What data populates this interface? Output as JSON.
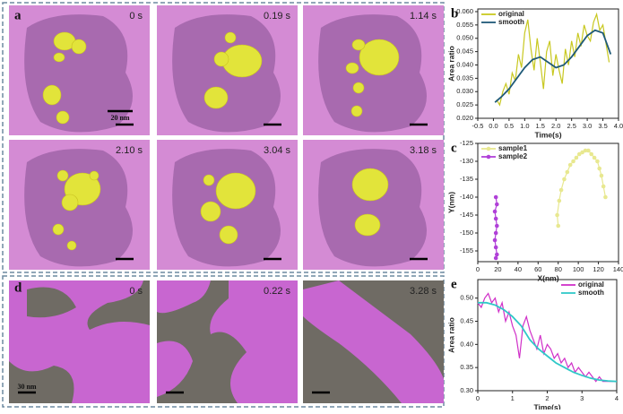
{
  "micrographs": {
    "label_a": "a",
    "times_a": [
      "0 s",
      "0.19 s",
      "1.14 s",
      "2.10 s",
      "3.04 s",
      "3.18 s"
    ],
    "scale_a": "20 nm",
    "label_d": "d",
    "times_d": [
      "0 s",
      "0.22 s",
      "3.28 s"
    ],
    "scale_d": "30 nm"
  },
  "chart_data": [
    {
      "type": "line",
      "panel_label": "b",
      "x_label": "Time(s)",
      "y_label": "Area ratio",
      "xlim": [
        -0.5,
        4.0
      ],
      "xticks": [
        {
          "value": -0.5,
          "label": "-0.5"
        },
        {
          "value": 0,
          "label": "0.0"
        },
        0.5,
        {
          "value": 1,
          "label": "1.0"
        },
        1.5,
        {
          "value": 2,
          "label": "2.0"
        },
        2.5,
        {
          "value": 3,
          "label": "3.0"
        },
        3.5,
        {
          "value": 4,
          "label": "4.0"
        }
      ],
      "ylim": [
        0.02,
        0.061
      ],
      "yticks": [
        {
          "value": 0.02,
          "label": "0.020"
        },
        0.025,
        {
          "value": 0.03,
          "label": "0.030"
        },
        0.035,
        {
          "value": 0.04,
          "label": "0.040"
        },
        0.045,
        {
          "value": 0.05,
          "label": "0.050"
        },
        0.055,
        {
          "value": 0.06,
          "label": "0.060"
        }
      ],
      "legend": "upper-left",
      "markers": false,
      "series": [
        {
          "name": "original",
          "color": "#c8c820",
          "width": 1.2,
          "x": [
            0.1,
            0.2,
            0.3,
            0.4,
            0.5,
            0.6,
            0.7,
            0.8,
            0.9,
            1.0,
            1.1,
            1.2,
            1.3,
            1.4,
            1.5,
            1.6,
            1.7,
            1.8,
            1.9,
            2.0,
            2.1,
            2.2,
            2.3,
            2.4,
            2.5,
            2.6,
            2.7,
            2.8,
            2.9,
            3.0,
            3.1,
            3.2,
            3.3,
            3.4,
            3.5,
            3.6,
            3.7
          ],
          "values": [
            0.027,
            0.025,
            0.03,
            0.033,
            0.029,
            0.037,
            0.034,
            0.044,
            0.039,
            0.052,
            0.057,
            0.046,
            0.038,
            0.05,
            0.041,
            0.031,
            0.045,
            0.049,
            0.036,
            0.044,
            0.038,
            0.033,
            0.046,
            0.04,
            0.049,
            0.043,
            0.052,
            0.047,
            0.055,
            0.051,
            0.049,
            0.056,
            0.059,
            0.053,
            0.055,
            0.048,
            0.041
          ]
        },
        {
          "name": "smooth",
          "color": "#1f5a78",
          "width": 1.8,
          "x": [
            0.05,
            0.25,
            0.5,
            0.75,
            1.0,
            1.25,
            1.5,
            1.75,
            2.0,
            2.25,
            2.5,
            2.75,
            3.0,
            3.25,
            3.5,
            3.75
          ],
          "values": [
            0.026,
            0.028,
            0.031,
            0.035,
            0.039,
            0.042,
            0.043,
            0.041,
            0.039,
            0.04,
            0.043,
            0.047,
            0.051,
            0.053,
            0.052,
            0.044
          ]
        }
      ]
    },
    {
      "type": "line",
      "panel_label": "c",
      "x_label": "X(nm)",
      "y_label": "Y(nm)",
      "xlim": [
        0,
        140
      ],
      "xticks": [
        0,
        20,
        40,
        60,
        80,
        100,
        120,
        140
      ],
      "ylim": [
        -158,
        -125
      ],
      "yticks": [
        -155,
        -150,
        -145,
        -140,
        -135,
        -130,
        -125
      ],
      "legend": "upper-left",
      "markers": true,
      "series": [
        {
          "name": "sample1",
          "color": "#e8e890",
          "width": 1.2,
          "x": [
            80,
            79,
            81,
            83,
            86,
            89,
            92,
            95,
            98,
            101,
            104,
            107,
            110,
            113,
            116,
            119,
            121,
            123,
            125,
            127
          ],
          "values": [
            -148,
            -145,
            -141,
            -138,
            -135,
            -133,
            -131,
            -130,
            -129,
            -128,
            -127.5,
            -127,
            -127,
            -128,
            -129,
            -130,
            -132,
            -134,
            -137,
            -140
          ]
        },
        {
          "name": "sample2",
          "color": "#b040d8",
          "width": 1.2,
          "x": [
            18,
            19,
            17,
            18,
            19,
            18,
            17,
            18,
            19,
            18
          ],
          "values": [
            -140,
            -142,
            -144,
            -146,
            -148,
            -150,
            -152,
            -154,
            -156,
            -157
          ]
        }
      ]
    },
    {
      "type": "line",
      "panel_label": "e",
      "x_label": "Time(s)",
      "y_label": "Area ratio",
      "xlim": [
        0,
        4
      ],
      "xticks": [
        0,
        1,
        2,
        3,
        4
      ],
      "ylim": [
        0.3,
        0.54
      ],
      "yticks": [
        {
          "value": 0.3,
          "label": "0.30"
        },
        0.35,
        {
          "value": 0.4,
          "label": "0.40"
        },
        0.45,
        {
          "value": 0.5,
          "label": "0.50"
        }
      ],
      "legend": "upper-right",
      "markers": false,
      "series": [
        {
          "name": "original",
          "color": "#d030c8",
          "width": 1.2,
          "x": [
            0,
            0.1,
            0.2,
            0.3,
            0.4,
            0.5,
            0.6,
            0.7,
            0.8,
            0.9,
            1.0,
            1.1,
            1.2,
            1.3,
            1.4,
            1.5,
            1.6,
            1.7,
            1.8,
            1.9,
            2.0,
            2.1,
            2.2,
            2.3,
            2.4,
            2.5,
            2.6,
            2.7,
            2.8,
            2.9,
            3.0,
            3.1,
            3.2,
            3.3,
            3.4,
            3.5,
            3.6,
            3.7,
            3.8,
            3.9
          ],
          "values": [
            0.49,
            0.48,
            0.5,
            0.51,
            0.49,
            0.5,
            0.47,
            0.49,
            0.45,
            0.47,
            0.44,
            0.42,
            0.37,
            0.44,
            0.46,
            0.43,
            0.41,
            0.39,
            0.42,
            0.38,
            0.4,
            0.39,
            0.37,
            0.38,
            0.36,
            0.37,
            0.35,
            0.36,
            0.34,
            0.35,
            0.34,
            0.33,
            0.34,
            0.33,
            0.32,
            0.33,
            0.32,
            0.32,
            0.32,
            0.32
          ]
        },
        {
          "name": "smooth",
          "color": "#30c8c8",
          "width": 1.8,
          "x": [
            0,
            0.25,
            0.5,
            0.75,
            1.0,
            1.25,
            1.5,
            1.75,
            2.0,
            2.25,
            2.5,
            2.75,
            3.0,
            3.25,
            3.5,
            3.75,
            4.0
          ],
          "values": [
            0.49,
            0.49,
            0.485,
            0.475,
            0.46,
            0.44,
            0.41,
            0.39,
            0.375,
            0.36,
            0.35,
            0.34,
            0.333,
            0.327,
            0.323,
            0.321,
            0.32
          ]
        }
      ]
    }
  ]
}
